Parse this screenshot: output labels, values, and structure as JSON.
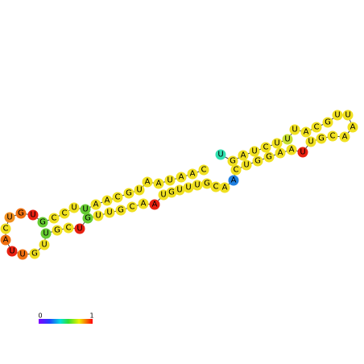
{
  "nodes": [
    {
      "label": "U",
      "color": "#30e0b0"
    },
    {
      "label": "G",
      "color": "#f0e020"
    },
    {
      "label": "A",
      "color": "#f0e020"
    },
    {
      "label": "U",
      "color": "#f0e020"
    },
    {
      "label": "C",
      "color": "#f0e020"
    },
    {
      "label": "U",
      "color": "#f0e020"
    },
    {
      "label": "U",
      "color": "#c8e030"
    },
    {
      "label": "U",
      "color": "#f0e020"
    },
    {
      "label": "A",
      "color": "#f0e020"
    },
    {
      "label": "C",
      "color": "#f0e020"
    },
    {
      "label": "G",
      "color": "#f0e020"
    },
    {
      "label": "U",
      "color": "#f0e020"
    },
    {
      "label": "U",
      "color": "#f0e020"
    },
    {
      "label": "A",
      "color": "#f0e020"
    },
    {
      "label": "A",
      "color": "#f0e020"
    },
    {
      "label": "C",
      "color": "#f0e020"
    },
    {
      "label": "G",
      "color": "#f0e020"
    },
    {
      "label": "U",
      "color": "#f0e020"
    },
    {
      "label": "U",
      "color": "#e82010"
    },
    {
      "label": "A",
      "color": "#f0e020"
    },
    {
      "label": "A",
      "color": "#f0e020"
    },
    {
      "label": "G",
      "color": "#f0e020"
    },
    {
      "label": "G",
      "color": "#f0e020"
    },
    {
      "label": "U",
      "color": "#f0e020"
    },
    {
      "label": "C",
      "color": "#f0e020"
    },
    {
      "label": "A",
      "color": "#2080e0"
    },
    {
      "label": "A",
      "color": "#f0e020"
    },
    {
      "label": "C",
      "color": "#f0e020"
    },
    {
      "label": "G",
      "color": "#f0e020"
    },
    {
      "label": "U",
      "color": "#f0e020"
    },
    {
      "label": "U",
      "color": "#f0e020"
    },
    {
      "label": "U",
      "color": "#f0e020"
    },
    {
      "label": "G",
      "color": "#f0e020"
    },
    {
      "label": "U",
      "color": "#f0e020"
    },
    {
      "label": "A",
      "color": "#e82010"
    },
    {
      "label": "A",
      "color": "#f0e020"
    },
    {
      "label": "C",
      "color": "#f0e020"
    },
    {
      "label": "G",
      "color": "#f0e020"
    },
    {
      "label": "U",
      "color": "#f0e020"
    },
    {
      "label": "U",
      "color": "#f0e020"
    },
    {
      "label": "G",
      "color": "#66cc33"
    },
    {
      "label": "U",
      "color": "#e82010"
    },
    {
      "label": "C",
      "color": "#f0e020"
    },
    {
      "label": "G",
      "color": "#f0e020"
    },
    {
      "label": "U",
      "color": "#66cc33"
    },
    {
      "label": "U",
      "color": "#f0e020"
    },
    {
      "label": "G",
      "color": "#f0e020"
    },
    {
      "label": "U",
      "color": "#f07010"
    },
    {
      "label": "U",
      "color": "#e82010"
    },
    {
      "label": "A",
      "color": "#f07010"
    },
    {
      "label": "C",
      "color": "#f0e020"
    },
    {
      "label": "U",
      "color": "#f09020"
    },
    {
      "label": "G",
      "color": "#f07010"
    },
    {
      "label": "U",
      "color": "#e82010"
    },
    {
      "label": "G",
      "color": "#66cc33"
    },
    {
      "label": "C",
      "color": "#f0e020"
    },
    {
      "label": "C",
      "color": "#f0e020"
    },
    {
      "label": "U",
      "color": "#f0e020"
    },
    {
      "label": "U",
      "color": "#66cc33"
    },
    {
      "label": "A",
      "color": "#f0e020"
    },
    {
      "label": "A",
      "color": "#f0e020"
    },
    {
      "label": "C",
      "color": "#f0e020"
    },
    {
      "label": "G",
      "color": "#f0e020"
    },
    {
      "label": "U",
      "color": "#f0e020"
    },
    {
      "label": "A",
      "color": "#f0e020"
    },
    {
      "label": "A",
      "color": "#f0e020"
    },
    {
      "label": "U",
      "color": "#f0e020"
    },
    {
      "label": "A",
      "color": "#f0e020"
    },
    {
      "label": "A",
      "color": "#f0e020"
    },
    {
      "label": "C",
      "color": "#f0e020"
    }
  ],
  "legend": {
    "min_label": "0",
    "max_label": "1"
  }
}
